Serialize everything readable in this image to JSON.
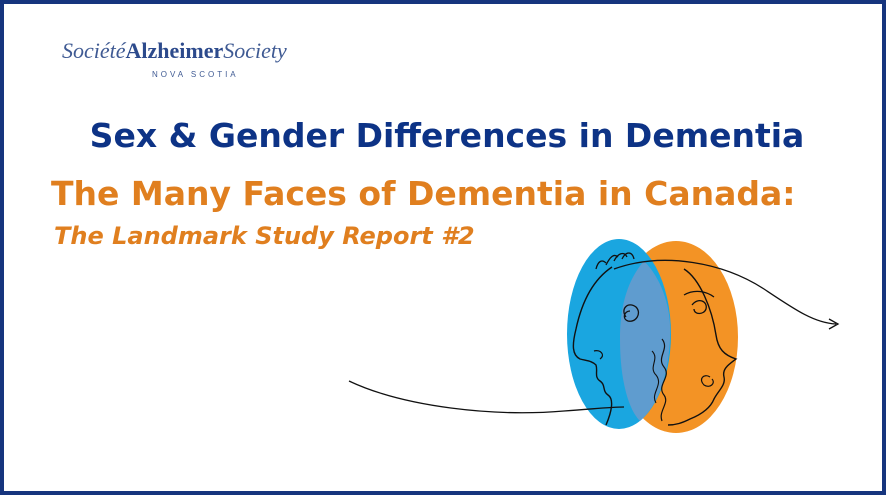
{
  "logo": {
    "societe": "Société",
    "alzheimer": "Alzheimer",
    "society": "Society",
    "region": "NOVA SCOTIA"
  },
  "title": "Sex & Gender Differences in Dementia",
  "subtitle": "The Many Faces of Dementia in Canada:",
  "report": "The Landmark Study Report #2",
  "colors": {
    "border": "#16357e",
    "title": "#0d3386",
    "accent_orange": "#e07f1f",
    "face_blue": "#1aa6e0",
    "face_orange": "#f39325",
    "face_overlap": "#5f9ccf"
  },
  "illustration": "two-faces-illustration"
}
